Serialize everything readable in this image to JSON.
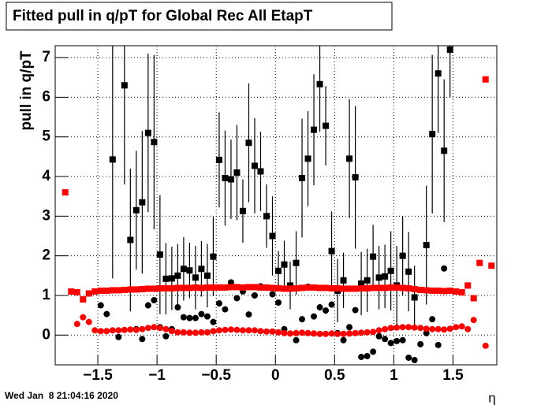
{
  "chart_data": {
    "type": "scatter",
    "title": "Fitted pull in q/pT for Global Rec All EtapT",
    "y_label": "pull in q/pT",
    "x_label": "η",
    "timestamp": "Wed Jan  8 21:04:16 2020",
    "xlim": [
      -1.86,
      1.87
    ],
    "ylim": [
      -0.75,
      7.3
    ],
    "xticks": [
      {
        "value": -1.5,
        "label": "−1.5"
      },
      {
        "value": -1,
        "label": "−1"
      },
      {
        "value": -0.5,
        "label": "−0.5"
      },
      0,
      0.5,
      1,
      1.5
    ],
    "yticks": [
      0,
      1,
      2,
      3,
      4,
      5,
      6,
      7
    ],
    "grid": true,
    "x": [
      -1.775,
      -1.725,
      -1.675,
      -1.625,
      -1.575,
      -1.525,
      -1.475,
      -1.425,
      -1.375,
      -1.325,
      -1.275,
      -1.225,
      -1.175,
      -1.125,
      -1.075,
      -1.025,
      -0.975,
      -0.925,
      -0.875,
      -0.825,
      -0.775,
      -0.725,
      -0.675,
      -0.625,
      -0.575,
      -0.525,
      -0.475,
      -0.425,
      -0.375,
      -0.325,
      -0.275,
      -0.225,
      -0.175,
      -0.125,
      -0.075,
      -0.025,
      0.025,
      0.075,
      0.125,
      0.175,
      0.225,
      0.275,
      0.325,
      0.375,
      0.425,
      0.475,
      0.525,
      0.575,
      0.625,
      0.675,
      0.725,
      0.775,
      0.825,
      0.875,
      0.925,
      0.975,
      1.025,
      1.075,
      1.125,
      1.175,
      1.225,
      1.275,
      1.325,
      1.375,
      1.425,
      1.475,
      1.525,
      1.575,
      1.625,
      1.675,
      1.725,
      1.775,
      1.825
    ],
    "series": [
      {
        "marker": "square",
        "color": "#000000",
        "values": [
          null,
          null,
          null,
          null,
          null,
          null,
          null,
          null,
          4.43,
          null,
          6.3,
          2.4,
          3.15,
          3.35,
          5.1,
          4.87,
          2.03,
          1.42,
          1.43,
          1.5,
          1.67,
          1.63,
          1.45,
          1.67,
          1.5,
          1.98,
          4.42,
          3.96,
          3.93,
          4.1,
          3.13,
          4.85,
          4.27,
          4.13,
          3.0,
          2.5,
          1.62,
          1.78,
          1.25,
          1.82,
          3.96,
          4.45,
          5.18,
          6.33,
          5.28,
          2.12,
          1.12,
          1.38,
          4.45,
          3.98,
          1.3,
          1.38,
          1.98,
          1.45,
          1.48,
          1.62,
          1.25,
          2.0,
          1.6,
          0.95,
          null,
          2.27,
          5.07,
          6.6,
          4.65,
          7.2,
          null,
          null,
          null,
          null,
          null,
          null,
          null
        ],
        "errors": [
          null,
          null,
          null,
          null,
          null,
          null,
          null,
          null,
          3,
          null,
          2.5,
          1.8,
          1.5,
          1.8,
          2,
          2.2,
          1.5,
          0.9,
          0.8,
          0.8,
          0.8,
          0.7,
          0.8,
          0.7,
          0.8,
          1,
          1.2,
          1.2,
          1,
          1.2,
          0.8,
          1.5,
          1.2,
          1,
          0.8,
          1,
          0.5,
          0.6,
          0.6,
          0.8,
          1.5,
          1.2,
          1.4,
          1.2,
          1,
          1,
          0.8,
          0.7,
          1.5,
          1.8,
          0.8,
          0.8,
          0.8,
          0.8,
          0.8,
          1,
          1,
          1,
          1,
          0.8,
          null,
          1.5,
          2,
          1.5,
          1.8,
          1.2,
          null,
          null,
          null,
          null,
          null,
          null,
          null
        ]
      },
      {
        "marker": "circle",
        "color": "#000000",
        "values": [
          null,
          null,
          null,
          null,
          null,
          null,
          0.75,
          0.53,
          null,
          -0.05,
          null,
          null,
          0.15,
          -0.1,
          0.75,
          0.88,
          0.2,
          -0.03,
          0.15,
          0.7,
          0.45,
          0.43,
          0.43,
          0.53,
          0.47,
          0.33,
          0.8,
          0.65,
          1.33,
          0.93,
          1.1,
          0.52,
          1.0,
          1.23,
          1.2,
          1.03,
          0.82,
          0.15,
          1.2,
          -0.13,
          0.4,
          1.22,
          0.47,
          0.7,
          0.62,
          0.77,
          0.05,
          -0.13,
          0.2,
          0.63,
          -0.55,
          -0.53,
          -0.42,
          -0.03,
          -0.1,
          -0.2,
          -0.15,
          -0.13,
          -0.57,
          -0.63,
          -0.23,
          0.05,
          0.4,
          -0.25,
          1.68,
          null,
          null,
          null,
          null,
          null,
          null,
          null,
          null
        ]
      },
      {
        "marker": "square",
        "color": "#ff0000",
        "values": [
          3.6,
          1.1,
          1.08,
          0.9,
          1.05,
          1.1,
          1.12,
          1.12,
          1.13,
          1.13,
          1.14,
          1.15,
          1.15,
          1.16,
          1.17,
          1.17,
          1.18,
          1.18,
          1.18,
          1.19,
          1.19,
          1.19,
          1.2,
          1.19,
          1.2,
          1.2,
          1.2,
          1.2,
          1.21,
          1.21,
          1.2,
          1.21,
          1.21,
          1.2,
          1.2,
          1.19,
          1.18,
          1.17,
          1.17,
          1.18,
          1.19,
          1.2,
          1.2,
          1.19,
          1.19,
          1.18,
          1.18,
          1.17,
          1.17,
          1.17,
          1.18,
          1.18,
          1.19,
          1.19,
          1.19,
          1.2,
          1.2,
          1.19,
          1.18,
          1.16,
          1.14,
          1.13,
          1.12,
          1.12,
          1.11,
          1.12,
          1.1,
          1.08,
          1.25,
          0.93,
          1.82,
          6.45,
          1.75
        ]
      },
      {
        "marker": "circle",
        "color": "#ff0000",
        "values": [
          null,
          null,
          0.28,
          0.45,
          0.33,
          0.12,
          0.1,
          0.1,
          0.12,
          0.12,
          0.13,
          0.14,
          0.13,
          0.15,
          0.18,
          0.2,
          0.18,
          0.15,
          0.1,
          0.07,
          0.07,
          0.06,
          0.06,
          0.07,
          0.07,
          0.1,
          0.12,
          0.13,
          0.14,
          0.13,
          0.12,
          0.12,
          0.12,
          0.1,
          0.09,
          0.09,
          0.07,
          0.05,
          0.04,
          0.05,
          0.06,
          0.05,
          0.04,
          0.03,
          0.03,
          0.04,
          0.03,
          0.03,
          0.04,
          0.05,
          0.06,
          0.07,
          0.08,
          0.12,
          0.15,
          0.18,
          0.19,
          0.2,
          0.2,
          0.19,
          0.18,
          0.16,
          0.15,
          0.15,
          0.14,
          0.16,
          0.2,
          0.22,
          0.15,
          0.38,
          null,
          -0.27,
          null
        ]
      }
    ]
  }
}
